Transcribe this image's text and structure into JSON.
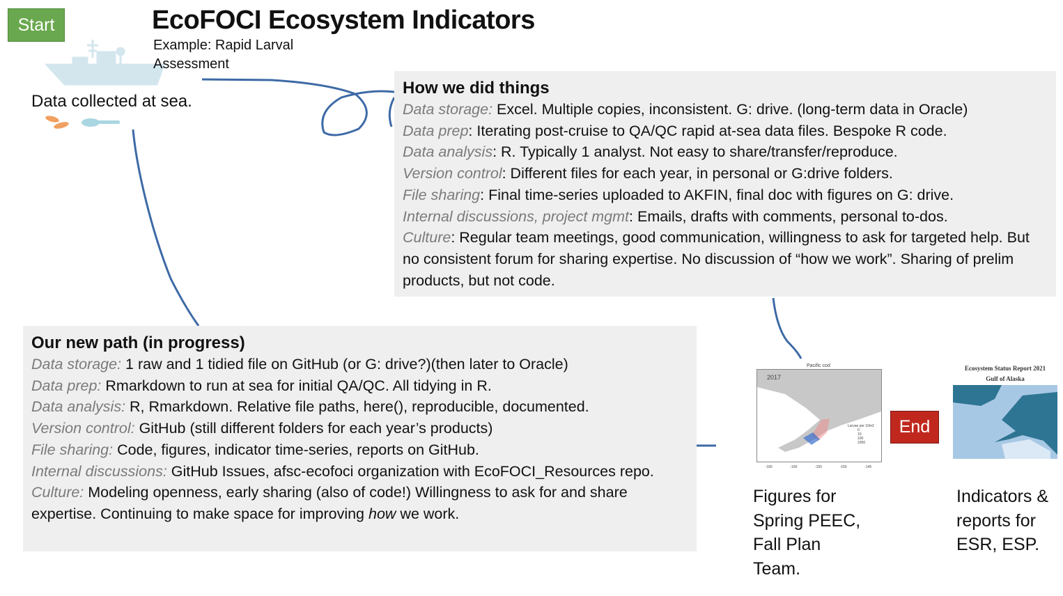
{
  "title": "EcoFOCI Ecosystem Indicators",
  "subtitle": "Example: Rapid Larval Assessment",
  "start_label": "Start",
  "end_label": "End",
  "collected": "Data collected at sea.",
  "old": {
    "heading": "How we did things",
    "items": [
      {
        "label": "Data storage:",
        "text": " Excel. Multiple copies, inconsistent. G: drive. (long-term data in Oracle)"
      },
      {
        "label": "Data prep",
        "text": ": Iterating post-cruise to QA/QC rapid at-sea data files. Bespoke R code."
      },
      {
        "label": "Data analysis",
        "text": ": R. Typically 1 analyst. Not easy to share/transfer/reproduce."
      },
      {
        "label": "Version control",
        "text": ": Different files for each year, in personal or G:drive folders."
      },
      {
        "label": "File sharing",
        "text": ": Final time-series uploaded to AKFIN, final doc with figures on G: drive."
      },
      {
        "label": "Internal discussions, project mgmt",
        "text": ": Emails, drafts with comments, personal to-dos."
      },
      {
        "label": "Culture",
        "text": ": Regular team meetings, good communication, willingness to ask for targeted help. But no consistent forum for sharing expertise. No discussion of “how we work”. Sharing of prelim products, but not code."
      }
    ]
  },
  "new": {
    "heading": "Our new path (in progress)",
    "items": [
      {
        "label": "Data storage:",
        "text": " 1 raw and 1 tidied file on GitHub (or G: drive?)(then later to Oracle)"
      },
      {
        "label": "Data prep:",
        "text": " Rmarkdown to run at sea for initial QA/QC. All tidying in R."
      },
      {
        "label": "Data analysis:",
        "text": " R, Rmarkdown. Relative file paths, here(), reproducible, documented."
      },
      {
        "label": "Version control:",
        "text": " GitHub (still different folders for each year’s products)"
      },
      {
        "label": "File sharing:",
        "text": " Code, figures, indicator time-series, reports on GitHub."
      },
      {
        "label": "Internal discussions:",
        "text": " GitHub Issues, afsc-ecofoci organization with EcoFOCI_Resources repo."
      }
    ],
    "culture": {
      "label": "Culture:",
      "text_before": " Modeling openness, early sharing (also of code!) Willingness to ask for and share expertise. Continuing to make space for improving ",
      "emph": "how",
      "text_after": " we work."
    }
  },
  "figure_map": {
    "title": "Pacific cod",
    "year": "2017",
    "legend_title": "Larvae per 10m2",
    "legend_items": [
      "0",
      "10",
      "100",
      "1000"
    ],
    "x_ticks": [
      "-165",
      "-160",
      "-155",
      "-150",
      "-145"
    ]
  },
  "report_cover": {
    "line1": "Ecosystem Status Report 2021",
    "line2": "Gulf of Alaska"
  },
  "caption_figures": "Figures for Spring PEEC, Fall Plan Team.",
  "caption_indicators": "Indicators & reports for ESR, ESP.",
  "colors": {
    "start": "#6aa84f",
    "end": "#c0281e",
    "connector": "#3d6aa6",
    "box": "#efefef",
    "label": "#7a7a7a"
  }
}
